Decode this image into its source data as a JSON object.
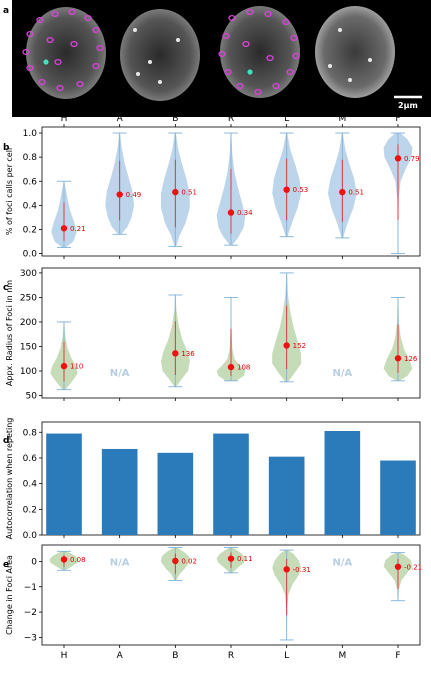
{
  "panel_a": {
    "letter": "a",
    "scalebar_label": "2µm"
  },
  "categories": [
    "H",
    "A",
    "B",
    "R",
    "L",
    "M",
    "F"
  ],
  "chart_data": [
    {
      "id": "b",
      "letter": "b",
      "type": "violin",
      "ylabel": "% of foci calls per cell",
      "ylim": [
        -0.02,
        1.05
      ],
      "yticks": [
        0.0,
        0.2,
        0.4,
        0.6,
        0.8,
        1.0
      ],
      "tick_labels": [
        "0.0",
        "0.2",
        "0.4",
        "0.6",
        "0.8",
        "1.0"
      ],
      "top_tick_labels": true,
      "bottom_tick_labels": false,
      "color": "#b9d3ea",
      "series": [
        {
          "category": "H",
          "min": 0.05,
          "max": 0.6,
          "mean": 0.21,
          "label": "0.21",
          "shape": [
            [
              0.05,
              0.1
            ],
            [
              0.1,
              0.55
            ],
            [
              0.18,
              0.75
            ],
            [
              0.26,
              0.6
            ],
            [
              0.36,
              0.35
            ],
            [
              0.46,
              0.2
            ],
            [
              0.55,
              0.08
            ],
            [
              0.6,
              0.02
            ]
          ]
        },
        {
          "category": "A",
          "min": 0.16,
          "max": 1.0,
          "mean": 0.49,
          "label": "0.49",
          "shape": [
            [
              0.16,
              0.1
            ],
            [
              0.22,
              0.45
            ],
            [
              0.3,
              0.7
            ],
            [
              0.4,
              0.85
            ],
            [
              0.52,
              0.75
            ],
            [
              0.64,
              0.5
            ],
            [
              0.76,
              0.28
            ],
            [
              0.88,
              0.12
            ],
            [
              1.0,
              0.02
            ]
          ]
        },
        {
          "category": "B",
          "min": 0.06,
          "max": 1.0,
          "mean": 0.51,
          "label": "0.51",
          "shape": [
            [
              0.06,
              0.05
            ],
            [
              0.15,
              0.25
            ],
            [
              0.25,
              0.6
            ],
            [
              0.38,
              0.85
            ],
            [
              0.5,
              0.85
            ],
            [
              0.62,
              0.65
            ],
            [
              0.74,
              0.4
            ],
            [
              0.86,
              0.18
            ],
            [
              1.0,
              0.03
            ]
          ]
        },
        {
          "category": "R",
          "min": 0.07,
          "max": 1.0,
          "mean": 0.34,
          "label": "0.34",
          "shape": [
            [
              0.07,
              0.08
            ],
            [
              0.14,
              0.45
            ],
            [
              0.22,
              0.75
            ],
            [
              0.32,
              0.85
            ],
            [
              0.42,
              0.65
            ],
            [
              0.55,
              0.4
            ],
            [
              0.68,
              0.2
            ],
            [
              0.82,
              0.08
            ],
            [
              1.0,
              0.02
            ]
          ]
        },
        {
          "category": "L",
          "min": 0.14,
          "max": 1.0,
          "mean": 0.53,
          "label": "0.53",
          "shape": [
            [
              0.14,
              0.05
            ],
            [
              0.25,
              0.3
            ],
            [
              0.38,
              0.65
            ],
            [
              0.5,
              0.85
            ],
            [
              0.62,
              0.75
            ],
            [
              0.74,
              0.5
            ],
            [
              0.86,
              0.22
            ],
            [
              1.0,
              0.03
            ]
          ]
        },
        {
          "category": "M",
          "min": 0.13,
          "max": 1.0,
          "mean": 0.51,
          "label": "0.51",
          "shape": [
            [
              0.13,
              0.05
            ],
            [
              0.25,
              0.3
            ],
            [
              0.38,
              0.65
            ],
            [
              0.5,
              0.85
            ],
            [
              0.62,
              0.7
            ],
            [
              0.74,
              0.42
            ],
            [
              0.86,
              0.18
            ],
            [
              1.0,
              0.03
            ]
          ]
        },
        {
          "category": "F",
          "min": 0.0,
          "max": 1.0,
          "mean": 0.79,
          "label": "0.79",
          "shape": [
            [
              0.0,
              0.01
            ],
            [
              0.25,
              0.02
            ],
            [
              0.45,
              0.04
            ],
            [
              0.6,
              0.15
            ],
            [
              0.7,
              0.45
            ],
            [
              0.8,
              0.8
            ],
            [
              0.88,
              0.85
            ],
            [
              0.95,
              0.55
            ],
            [
              1.0,
              0.15
            ]
          ]
        }
      ]
    },
    {
      "id": "c",
      "letter": "c",
      "type": "violin",
      "ylabel": "Appx. Radius of Foci in nm",
      "ylim": [
        45,
        310
      ],
      "yticks": [
        50,
        100,
        150,
        200,
        250,
        300
      ],
      "tick_labels": [
        "50",
        "100",
        "150",
        "200",
        "250",
        "300"
      ],
      "top_tick_labels": false,
      "bottom_tick_labels": false,
      "color": "#c3d9b3",
      "na_label": "N/A",
      "series": [
        {
          "category": "H",
          "min": 62,
          "max": 200,
          "mean": 110,
          "label": "110",
          "shape": [
            [
              62,
              0.08
            ],
            [
              80,
              0.5
            ],
            [
              95,
              0.8
            ],
            [
              110,
              0.7
            ],
            [
              125,
              0.45
            ],
            [
              145,
              0.22
            ],
            [
              170,
              0.08
            ],
            [
              200,
              0.02
            ]
          ]
        },
        {
          "category": "A",
          "na": true
        },
        {
          "category": "B",
          "min": 68,
          "max": 255,
          "mean": 136,
          "label": "136",
          "shape": [
            [
              68,
              0.05
            ],
            [
              85,
              0.4
            ],
            [
              100,
              0.75
            ],
            [
              120,
              0.85
            ],
            [
              140,
              0.7
            ],
            [
              165,
              0.4
            ],
            [
              195,
              0.18
            ],
            [
              225,
              0.06
            ],
            [
              255,
              0.02
            ]
          ]
        },
        {
          "category": "R",
          "min": 80,
          "max": 250,
          "mean": 108,
          "label": "108",
          "shape": [
            [
              80,
              0.3
            ],
            [
              90,
              0.75
            ],
            [
              100,
              0.85
            ],
            [
              112,
              0.5
            ],
            [
              125,
              0.2
            ],
            [
              145,
              0.08
            ],
            [
              175,
              0.04
            ],
            [
              210,
              0.02
            ],
            [
              250,
              0.01
            ]
          ]
        },
        {
          "category": "L",
          "min": 78,
          "max": 300,
          "mean": 152,
          "label": "152",
          "shape": [
            [
              78,
              0.08
            ],
            [
              95,
              0.45
            ],
            [
              115,
              0.85
            ],
            [
              135,
              0.85
            ],
            [
              160,
              0.65
            ],
            [
              190,
              0.4
            ],
            [
              220,
              0.22
            ],
            [
              255,
              0.08
            ],
            [
              300,
              0.02
            ]
          ]
        },
        {
          "category": "M",
          "na": true
        },
        {
          "category": "F",
          "min": 80,
          "max": 250,
          "mean": 126,
          "label": "126",
          "shape": [
            [
              80,
              0.1
            ],
            [
              90,
              0.55
            ],
            [
              105,
              0.85
            ],
            [
              125,
              0.65
            ],
            [
              145,
              0.35
            ],
            [
              170,
              0.15
            ],
            [
              200,
              0.06
            ],
            [
              250,
              0.02
            ]
          ]
        }
      ]
    },
    {
      "id": "d",
      "letter": "d",
      "type": "bar",
      "ylabel": "Autocorrelation when repeting",
      "ylim": [
        0,
        0.88
      ],
      "yticks": [
        0.0,
        0.2,
        0.4,
        0.6,
        0.8
      ],
      "tick_labels": [
        "0.0",
        "0.2",
        "0.4",
        "0.6",
        "0.8"
      ],
      "top_tick_labels": false,
      "bottom_tick_labels": false,
      "color": "#2b7bba",
      "categories": [
        "H",
        "A",
        "B",
        "R",
        "L",
        "M",
        "F"
      ],
      "values": [
        0.79,
        0.67,
        0.64,
        0.79,
        0.61,
        0.81,
        0.58
      ]
    },
    {
      "id": "e",
      "letter": "e",
      "type": "violin",
      "ylabel": "Change in Foci Area",
      "ylim": [
        -3.3,
        0.65
      ],
      "yticks": [
        -3,
        -2,
        -1,
        0
      ],
      "tick_labels": [
        "−3",
        "−2",
        "−1",
        "0"
      ],
      "top_tick_labels": false,
      "bottom_tick_labels": true,
      "color": "#c3d9b3",
      "na_label": "N/A",
      "series": [
        {
          "category": "H",
          "min": -0.35,
          "max": 0.4,
          "mean": 0.08,
          "label": "0.08",
          "shape": [
            [
              -0.35,
              0.08
            ],
            [
              -0.2,
              0.45
            ],
            [
              -0.05,
              0.8
            ],
            [
              0.08,
              0.85
            ],
            [
              0.2,
              0.7
            ],
            [
              0.32,
              0.4
            ],
            [
              0.4,
              0.1
            ]
          ]
        },
        {
          "category": "A",
          "na": true
        },
        {
          "category": "B",
          "min": -0.75,
          "max": 0.55,
          "mean": 0.02,
          "label": "0.02",
          "shape": [
            [
              -0.75,
              0.05
            ],
            [
              -0.5,
              0.25
            ],
            [
              -0.25,
              0.6
            ],
            [
              0.0,
              0.85
            ],
            [
              0.2,
              0.8
            ],
            [
              0.38,
              0.5
            ],
            [
              0.55,
              0.08
            ]
          ]
        },
        {
          "category": "R",
          "min": -0.45,
          "max": 0.55,
          "mean": 0.11,
          "label": "0.11",
          "shape": [
            [
              -0.45,
              0.08
            ],
            [
              -0.25,
              0.4
            ],
            [
              -0.05,
              0.75
            ],
            [
              0.12,
              0.85
            ],
            [
              0.3,
              0.65
            ],
            [
              0.45,
              0.35
            ],
            [
              0.55,
              0.08
            ]
          ]
        },
        {
          "category": "L",
          "min": -3.1,
          "max": 0.45,
          "mean": -0.31,
          "label": "-0.31",
          "shape": [
            [
              -3.1,
              0.01
            ],
            [
              -2.4,
              0.02
            ],
            [
              -1.8,
              0.04
            ],
            [
              -1.3,
              0.1
            ],
            [
              -0.9,
              0.35
            ],
            [
              -0.55,
              0.7
            ],
            [
              -0.25,
              0.85
            ],
            [
              0.05,
              0.7
            ],
            [
              0.3,
              0.4
            ],
            [
              0.45,
              0.08
            ]
          ]
        },
        {
          "category": "M",
          "na": true
        },
        {
          "category": "F",
          "min": -1.55,
          "max": 0.35,
          "mean": -0.21,
          "label": "-0.21",
          "shape": [
            [
              -1.55,
              0.02
            ],
            [
              -1.1,
              0.05
            ],
            [
              -0.75,
              0.2
            ],
            [
              -0.45,
              0.55
            ],
            [
              -0.2,
              0.85
            ],
            [
              0.05,
              0.75
            ],
            [
              0.25,
              0.4
            ],
            [
              0.35,
              0.1
            ]
          ]
        }
      ]
    }
  ]
}
